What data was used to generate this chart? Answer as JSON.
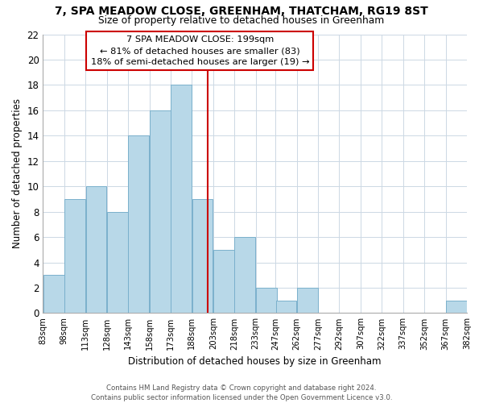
{
  "title": "7, SPA MEADOW CLOSE, GREENHAM, THATCHAM, RG19 8ST",
  "subtitle": "Size of property relative to detached houses in Greenham",
  "xlabel": "Distribution of detached houses by size in Greenham",
  "ylabel": "Number of detached properties",
  "bin_edges": [
    83,
    98,
    113,
    128,
    143,
    158,
    173,
    188,
    203,
    218,
    233,
    247,
    262,
    277,
    292,
    307,
    322,
    337,
    352,
    367,
    382
  ],
  "bar_heights": [
    3,
    9,
    10,
    8,
    14,
    16,
    18,
    9,
    5,
    6,
    2,
    1,
    2,
    0,
    0,
    0,
    0,
    0,
    0,
    1
  ],
  "bar_color": "#b8d8e8",
  "bar_edgecolor": "#7ab0cc",
  "reference_line_x": 199,
  "ylim": [
    0,
    22
  ],
  "yticks": [
    0,
    2,
    4,
    6,
    8,
    10,
    12,
    14,
    16,
    18,
    20,
    22
  ],
  "xtick_labels": [
    "83sqm",
    "98sqm",
    "113sqm",
    "128sqm",
    "143sqm",
    "158sqm",
    "173sqm",
    "188sqm",
    "203sqm",
    "218sqm",
    "233sqm",
    "247sqm",
    "262sqm",
    "277sqm",
    "292sqm",
    "307sqm",
    "322sqm",
    "337sqm",
    "352sqm",
    "367sqm",
    "382sqm"
  ],
  "annotation_title": "7 SPA MEADOW CLOSE: 199sqm",
  "annotation_line1": "← 81% of detached houses are smaller (83)",
  "annotation_line2": "18% of semi-detached houses are larger (19) →",
  "annotation_box_color": "#ffffff",
  "annotation_box_edgecolor": "#cc0000",
  "footer_line1": "Contains HM Land Registry data © Crown copyright and database right 2024.",
  "footer_line2": "Contains public sector information licensed under the Open Government Licence v3.0.",
  "background_color": "#ffffff",
  "grid_color": "#ccd8e4"
}
